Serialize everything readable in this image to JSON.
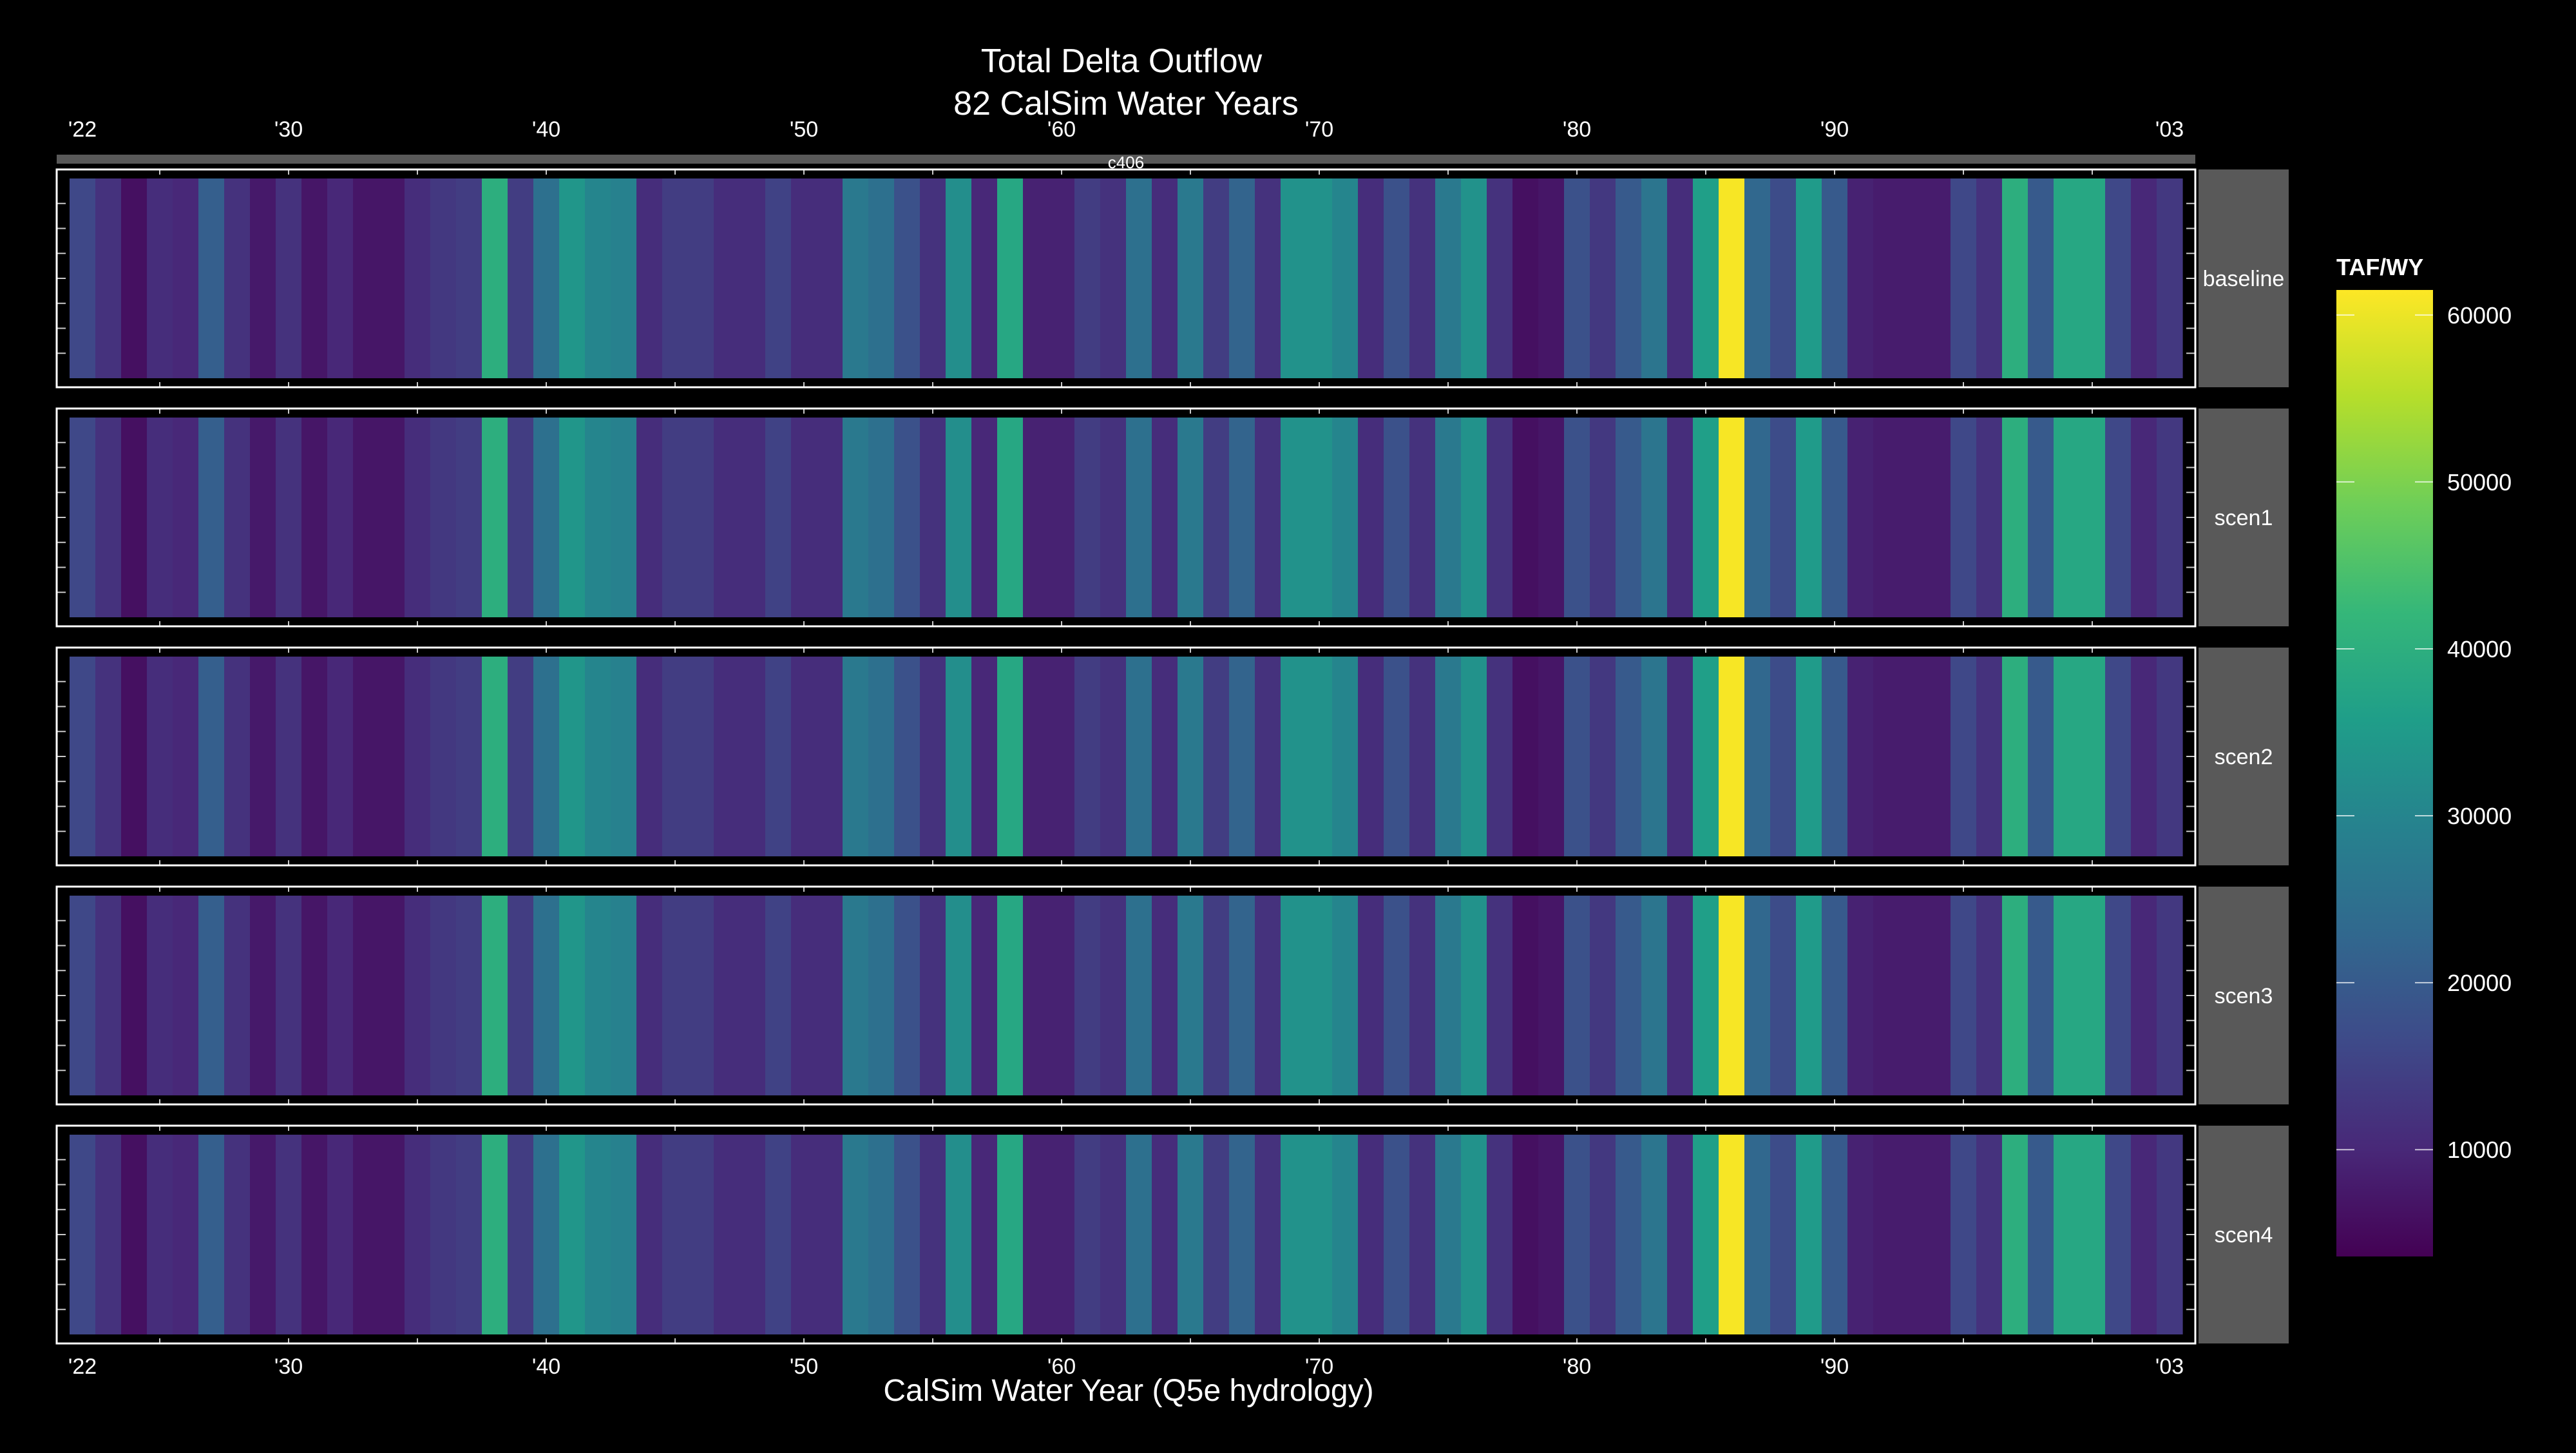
{
  "chart_data": {
    "type": "heatmap",
    "title": "Total Delta Outflow",
    "subtitle": "82 CalSim Water Years",
    "xlabel": "CalSim Water Year (Q5e hydrology)",
    "strip_label": "c406",
    "x_ticks": [
      "'22",
      "'30",
      "'40",
      "'50",
      "'60",
      "'70",
      "'80",
      "'90",
      "'03"
    ],
    "x_tick_years": [
      1922,
      1930,
      1940,
      1950,
      1960,
      1970,
      1980,
      1990,
      2003
    ],
    "xlim": [
      1921,
      2004
    ],
    "legend": {
      "title": "TAF/WY",
      "ticks": [
        "10000",
        "20000",
        "30000",
        "40000",
        "50000",
        "60000"
      ],
      "tick_values": [
        10000,
        20000,
        30000,
        40000,
        50000,
        60000
      ],
      "range": [
        3600,
        61500
      ],
      "position": "right"
    },
    "years": [
      1922,
      1923,
      1924,
      1925,
      1926,
      1927,
      1928,
      1929,
      1930,
      1931,
      1932,
      1933,
      1934,
      1935,
      1936,
      1937,
      1938,
      1939,
      1940,
      1941,
      1942,
      1943,
      1944,
      1945,
      1946,
      1947,
      1948,
      1949,
      1950,
      1951,
      1952,
      1953,
      1954,
      1955,
      1956,
      1957,
      1958,
      1959,
      1960,
      1961,
      1962,
      1963,
      1964,
      1965,
      1966,
      1967,
      1968,
      1969,
      1970,
      1971,
      1972,
      1973,
      1974,
      1975,
      1976,
      1977,
      1978,
      1979,
      1980,
      1981,
      1982,
      1983,
      1984,
      1985,
      1986,
      1987,
      1988,
      1989,
      1990,
      1991,
      1992,
      1993,
      1994,
      1995,
      1996,
      1997,
      1998,
      1999,
      2000,
      2001,
      2002,
      2003
    ],
    "series": [
      {
        "name": "baseline",
        "values": [
          16000,
          12000,
          6000,
          11000,
          10000,
          21000,
          12000,
          7500,
          12000,
          7000,
          10000,
          7000,
          7000,
          11000,
          13000,
          14000,
          40000,
          14000,
          25000,
          34000,
          30000,
          29000,
          11000,
          14000,
          14000,
          11000,
          11000,
          15000,
          11000,
          11000,
          27000,
          25000,
          18000,
          12000,
          32000,
          10000,
          38000,
          9000,
          9000,
          14000,
          12000,
          25000,
          11000,
          27000,
          14000,
          22000,
          12000,
          33000,
          33000,
          30000,
          11000,
          18000,
          12000,
          27000,
          33000,
          12000,
          6000,
          7000,
          18000,
          13000,
          20000,
          26000,
          11000,
          36000,
          61000,
          23000,
          17000,
          35000,
          20000,
          9000,
          8000,
          8000,
          8000,
          16000,
          12000,
          40000,
          20000,
          38000,
          38000,
          16000,
          10000,
          13000
        ]
      },
      {
        "name": "scen1",
        "values": [
          16000,
          12000,
          6000,
          11000,
          10000,
          21000,
          12000,
          7500,
          12000,
          7000,
          10000,
          7000,
          7000,
          11000,
          13000,
          14000,
          40000,
          14000,
          25000,
          34000,
          30000,
          29000,
          11000,
          14000,
          14000,
          11000,
          11000,
          15000,
          11000,
          11000,
          27000,
          25000,
          18000,
          12000,
          32000,
          10000,
          38000,
          9000,
          9000,
          14000,
          12000,
          25000,
          11000,
          27000,
          14000,
          22000,
          12000,
          33000,
          33000,
          30000,
          11000,
          18000,
          12000,
          27000,
          33000,
          12000,
          6000,
          7000,
          18000,
          13000,
          20000,
          26000,
          11000,
          36000,
          61000,
          23000,
          17000,
          35000,
          20000,
          9000,
          8000,
          8000,
          8000,
          16000,
          12000,
          40000,
          20000,
          38000,
          38000,
          16000,
          10000,
          13000
        ]
      },
      {
        "name": "scen2",
        "values": [
          16000,
          12000,
          6000,
          11000,
          10000,
          21000,
          12000,
          7500,
          12000,
          7000,
          10000,
          7000,
          7000,
          11000,
          13000,
          14000,
          40000,
          14000,
          25000,
          34000,
          30000,
          29000,
          11000,
          14000,
          14000,
          11000,
          11000,
          15000,
          11000,
          11000,
          27000,
          25000,
          18000,
          12000,
          32000,
          10000,
          38000,
          9000,
          9000,
          14000,
          12000,
          25000,
          11000,
          27000,
          14000,
          22000,
          12000,
          33000,
          33000,
          30000,
          11000,
          18000,
          12000,
          27000,
          33000,
          12000,
          6000,
          7000,
          18000,
          13000,
          20000,
          26000,
          11000,
          36000,
          61000,
          23000,
          17000,
          35000,
          20000,
          9000,
          8000,
          8000,
          8000,
          16000,
          12000,
          40000,
          20000,
          38000,
          38000,
          16000,
          10000,
          13000
        ]
      },
      {
        "name": "scen3",
        "values": [
          16000,
          12000,
          6000,
          11000,
          10000,
          21000,
          12000,
          7500,
          12000,
          7000,
          10000,
          7000,
          7000,
          11000,
          13000,
          14000,
          40000,
          14000,
          25000,
          34000,
          30000,
          29000,
          11000,
          14000,
          14000,
          11000,
          11000,
          15000,
          11000,
          11000,
          27000,
          25000,
          18000,
          12000,
          32000,
          10000,
          38000,
          9000,
          9000,
          14000,
          12000,
          25000,
          11000,
          27000,
          14000,
          22000,
          12000,
          33000,
          33000,
          30000,
          11000,
          18000,
          12000,
          27000,
          33000,
          12000,
          6000,
          7000,
          18000,
          13000,
          20000,
          26000,
          11000,
          36000,
          61000,
          23000,
          17000,
          35000,
          20000,
          9000,
          8000,
          8000,
          8000,
          16000,
          12000,
          40000,
          20000,
          38000,
          38000,
          16000,
          10000,
          13000
        ]
      },
      {
        "name": "scen4",
        "values": [
          16000,
          12000,
          6000,
          11000,
          10000,
          21000,
          12000,
          7500,
          12000,
          7000,
          10000,
          7000,
          7000,
          11000,
          13000,
          14000,
          40000,
          14000,
          25000,
          34000,
          30000,
          29000,
          11000,
          14000,
          14000,
          11000,
          11000,
          15000,
          11000,
          11000,
          27000,
          25000,
          18000,
          12000,
          32000,
          10000,
          38000,
          9000,
          9000,
          14000,
          12000,
          25000,
          11000,
          27000,
          14000,
          22000,
          12000,
          33000,
          33000,
          30000,
          11000,
          18000,
          12000,
          27000,
          33000,
          12000,
          6000,
          7000,
          18000,
          13000,
          20000,
          26000,
          11000,
          36000,
          61000,
          23000,
          17000,
          35000,
          20000,
          9000,
          8000,
          8000,
          8000,
          16000,
          12000,
          40000,
          20000,
          38000,
          38000,
          16000,
          10000,
          13000
        ]
      }
    ],
    "colors": {
      "background": "#000000",
      "strip_fill": "#595959",
      "strip_text": "#ffffff",
      "facet_border": "#ffffff",
      "text": "#ffffff",
      "tick_mark": "#c8c8c8",
      "colormap": [
        "#440154",
        "#482878",
        "#3e4a89",
        "#31688e",
        "#26828e",
        "#1f9e89",
        "#35b779",
        "#6ece58",
        "#b5de2b",
        "#fde725"
      ]
    }
  }
}
